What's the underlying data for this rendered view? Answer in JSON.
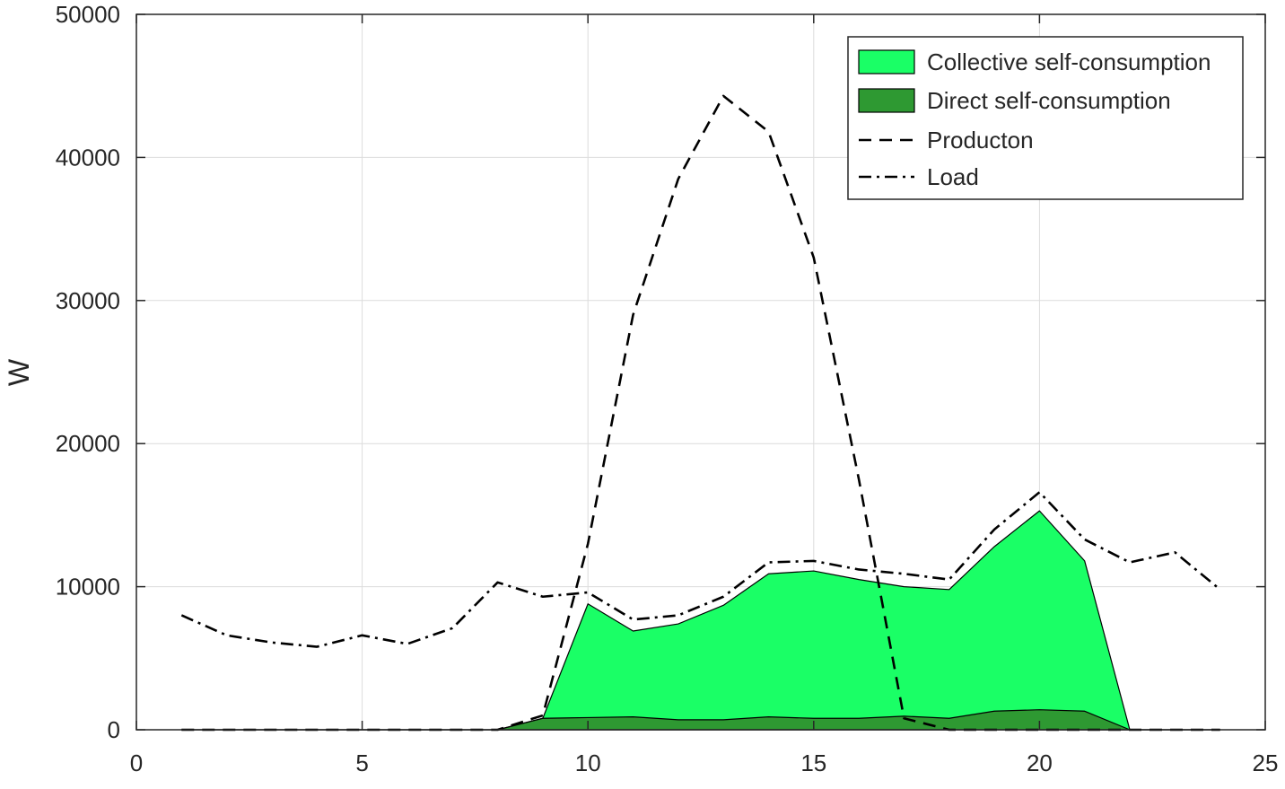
{
  "chart_data": {
    "type": "area",
    "title": "",
    "xlabel": "",
    "ylabel": "W",
    "xlim": [
      0,
      25
    ],
    "ylim": [
      0,
      50000
    ],
    "xticks": [
      0,
      5,
      10,
      15,
      20,
      25
    ],
    "yticks": [
      0,
      10000,
      20000,
      30000,
      40000,
      50000
    ],
    "grid": true,
    "legend_position": "top-right",
    "x": [
      1,
      2,
      3,
      4,
      5,
      6,
      7,
      8,
      9,
      10,
      11,
      12,
      13,
      14,
      15,
      16,
      17,
      18,
      19,
      20,
      21,
      22,
      23,
      24
    ],
    "series": [
      {
        "name": "Collective self-consumption",
        "kind": "area",
        "color": "#1aff66",
        "values": [
          0,
          0,
          0,
          0,
          0,
          0,
          0,
          0,
          800,
          8800,
          6900,
          7400,
          8700,
          10900,
          11100,
          10500,
          10000,
          9800,
          12800,
          15300,
          11800,
          0,
          0,
          0
        ]
      },
      {
        "name": "Direct self-consumption",
        "kind": "area",
        "color": "#2e9932",
        "values": [
          0,
          0,
          0,
          0,
          0,
          0,
          0,
          0,
          800,
          850,
          900,
          700,
          700,
          900,
          800,
          800,
          950,
          800,
          1300,
          1400,
          1300,
          0,
          0,
          0
        ]
      },
      {
        "name": "Producton",
        "kind": "line",
        "dash": "dashed",
        "color": "#000000",
        "values": [
          0,
          0,
          0,
          0,
          0,
          0,
          0,
          0,
          1000,
          13000,
          29000,
          38500,
          44300,
          41800,
          33000,
          17500,
          800,
          0,
          0,
          0,
          0,
          0,
          0,
          0
        ]
      },
      {
        "name": "Load",
        "kind": "line",
        "dash": "dashdot",
        "color": "#000000",
        "values": [
          8000,
          6600,
          6100,
          5800,
          6600,
          6000,
          7100,
          10300,
          9300,
          9600,
          7700,
          8000,
          9300,
          11700,
          11800,
          11200,
          10900,
          10500,
          14000,
          16600,
          13300,
          11700,
          12400,
          9800
        ]
      }
    ]
  }
}
